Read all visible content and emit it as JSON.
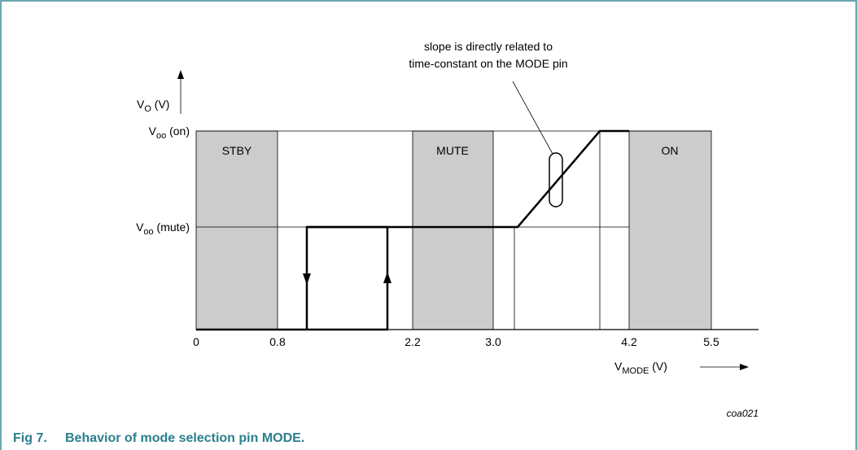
{
  "figure": {
    "annotation": [
      "slope is directly related to",
      "time-constant on the MODE pin"
    ],
    "y_label": {
      "main": "V",
      "sub": "O",
      "rest": " (V)"
    },
    "y_levels": [
      {
        "main": "V",
        "sub": "oo",
        "rest": " (on)"
      },
      {
        "main": "V",
        "sub": "oo",
        "rest": " (mute)"
      }
    ],
    "regions": [
      "STBY",
      "MUTE",
      "ON"
    ],
    "x_ticks": [
      "0",
      "0.8",
      "2.2",
      "3.0",
      "4.2",
      "5.5"
    ],
    "x_label": {
      "main": "V",
      "sub": "MODE",
      "rest": " (V)"
    },
    "code": "coa021",
    "caption": {
      "number": "Fig 7.",
      "text": "Behavior of mode selection pin MODE."
    }
  }
}
